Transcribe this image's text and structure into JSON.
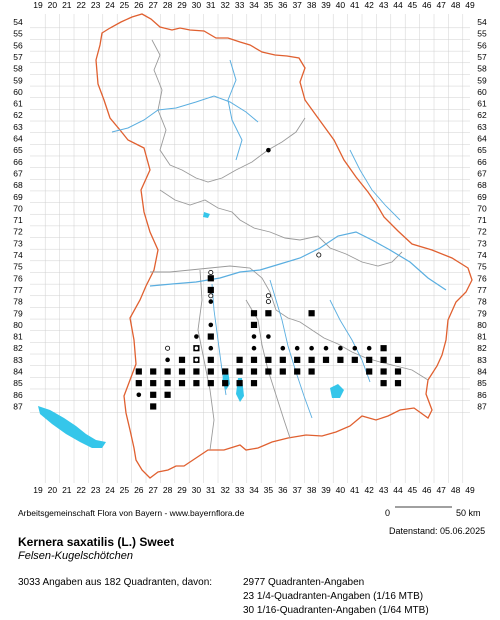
{
  "map": {
    "x_axis_labels": [
      "19",
      "20",
      "21",
      "22",
      "23",
      "24",
      "25",
      "26",
      "27",
      "28",
      "29",
      "30",
      "31",
      "32",
      "33",
      "34",
      "35",
      "36",
      "37",
      "38",
      "39",
      "40",
      "41",
      "42",
      "43",
      "44",
      "45",
      "46",
      "47",
      "48",
      "49"
    ],
    "y_axis_labels": [
      "54",
      "55",
      "56",
      "57",
      "58",
      "59",
      "60",
      "61",
      "62",
      "63",
      "64",
      "65",
      "66",
      "67",
      "68",
      "69",
      "70",
      "71",
      "72",
      "73",
      "74",
      "75",
      "76",
      "77",
      "78",
      "79",
      "80",
      "81",
      "82",
      "83",
      "84",
      "85",
      "86",
      "87"
    ],
    "colors": {
      "grid": "#d0d0d0",
      "border": "#e06030",
      "district_border": "#9a9a9a",
      "river": "#5aaee0",
      "lake": "#35c6ea",
      "record": "#000000"
    },
    "records": {
      "filled_squares": [
        [
          31,
          76
        ],
        [
          31,
          77
        ],
        [
          34,
          79
        ],
        [
          34,
          80
        ],
        [
          35,
          79
        ],
        [
          38,
          79
        ],
        [
          30,
          82
        ],
        [
          31,
          81
        ],
        [
          43,
          82
        ],
        [
          29,
          83
        ],
        [
          30,
          83
        ],
        [
          31,
          83
        ],
        [
          33,
          83
        ],
        [
          34,
          83
        ],
        [
          35,
          83
        ],
        [
          36,
          83
        ],
        [
          37,
          83
        ],
        [
          38,
          83
        ],
        [
          39,
          83
        ],
        [
          40,
          83
        ],
        [
          41,
          83
        ],
        [
          42,
          83
        ],
        [
          43,
          83
        ],
        [
          44,
          83
        ],
        [
          26,
          84
        ],
        [
          27,
          84
        ],
        [
          28,
          84
        ],
        [
          29,
          84
        ],
        [
          30,
          84
        ],
        [
          31,
          84
        ],
        [
          32,
          84
        ],
        [
          33,
          84
        ],
        [
          34,
          84
        ],
        [
          35,
          84
        ],
        [
          36,
          84
        ],
        [
          37,
          84
        ],
        [
          38,
          84
        ],
        [
          42,
          84
        ],
        [
          43,
          84
        ],
        [
          44,
          84
        ],
        [
          26,
          85
        ],
        [
          27,
          85
        ],
        [
          28,
          85
        ],
        [
          29,
          85
        ],
        [
          30,
          85
        ],
        [
          31,
          85
        ],
        [
          32,
          85
        ],
        [
          33,
          85
        ],
        [
          34,
          85
        ],
        [
          43,
          85
        ],
        [
          44,
          85
        ],
        [
          27,
          86
        ],
        [
          28,
          86
        ],
        [
          27,
          87
        ]
      ],
      "filled_circles": [
        [
          35,
          65
        ],
        [
          31,
          78
        ],
        [
          30,
          81
        ],
        [
          31,
          80
        ],
        [
          31,
          82
        ],
        [
          28,
          83
        ],
        [
          34,
          81
        ],
        [
          34,
          82
        ],
        [
          35,
          81
        ],
        [
          36,
          82
        ],
        [
          37,
          82
        ],
        [
          38,
          82
        ],
        [
          39,
          82
        ],
        [
          40,
          82
        ],
        [
          41,
          82
        ],
        [
          42,
          82
        ],
        [
          29,
          85
        ],
        [
          26,
          86
        ],
        [
          28,
          86
        ],
        [
          31,
          83
        ]
      ],
      "open_circles": [
        [
          38.5,
          74
        ],
        [
          31,
          75.5
        ],
        [
          31,
          77.5
        ],
        [
          35,
          77.5
        ],
        [
          35,
          78
        ],
        [
          28,
          82
        ],
        [
          30,
          83
        ],
        [
          30,
          82
        ]
      ]
    }
  },
  "credit": "Arbeitsgemeinschaft Flora von Bayern - www.bayernflora.de",
  "scale": {
    "start": "0",
    "end": "50 km"
  },
  "date": "Datenstand: 05.06.2025",
  "species": {
    "scientific": "Kernera saxatilis (L.) Sweet",
    "common": "Felsen-Kugelschötchen"
  },
  "summary": "3033 Angaben aus 182 Quadranten, davon:",
  "stats": [
    "2977 Quadranten-Angaben",
    "23 1/4-Quadranten-Angaben (1/16 MTB)",
    "30 1/16-Quadranten-Angaben (1/64 MTB)"
  ]
}
